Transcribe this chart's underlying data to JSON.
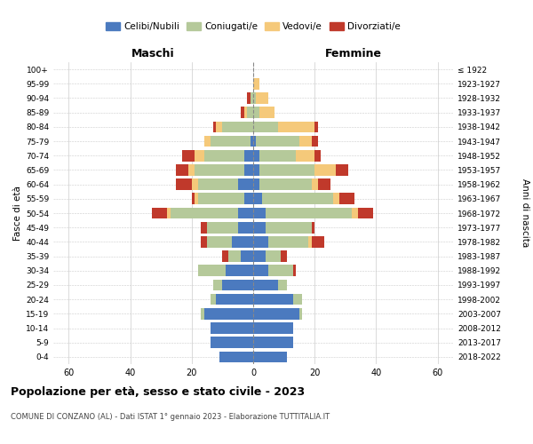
{
  "age_groups": [
    "0-4",
    "5-9",
    "10-14",
    "15-19",
    "20-24",
    "25-29",
    "30-34",
    "35-39",
    "40-44",
    "45-49",
    "50-54",
    "55-59",
    "60-64",
    "65-69",
    "70-74",
    "75-79",
    "80-84",
    "85-89",
    "90-94",
    "95-99",
    "100+"
  ],
  "birth_years": [
    "2018-2022",
    "2013-2017",
    "2008-2012",
    "2003-2007",
    "1998-2002",
    "1993-1997",
    "1988-1992",
    "1983-1987",
    "1978-1982",
    "1973-1977",
    "1968-1972",
    "1963-1967",
    "1958-1962",
    "1953-1957",
    "1948-1952",
    "1943-1947",
    "1938-1942",
    "1933-1937",
    "1928-1932",
    "1923-1927",
    "≤ 1922"
  ],
  "colors": {
    "celibi": "#4b7abf",
    "coniugati": "#b5c99a",
    "vedovi": "#f5c97a",
    "divorziati": "#c0392b"
  },
  "maschi": {
    "celibi": [
      11,
      14,
      14,
      16,
      12,
      10,
      9,
      4,
      7,
      5,
      5,
      3,
      5,
      3,
      3,
      1,
      0,
      0,
      0,
      0,
      0
    ],
    "coniugati": [
      0,
      0,
      0,
      1,
      2,
      3,
      9,
      4,
      8,
      10,
      22,
      15,
      13,
      16,
      13,
      13,
      10,
      2,
      1,
      0,
      0
    ],
    "vedovi": [
      0,
      0,
      0,
      0,
      0,
      0,
      0,
      0,
      0,
      0,
      1,
      1,
      2,
      2,
      3,
      2,
      2,
      1,
      0,
      0,
      0
    ],
    "divorziati": [
      0,
      0,
      0,
      0,
      0,
      0,
      0,
      2,
      2,
      2,
      5,
      1,
      5,
      4,
      4,
      0,
      1,
      1,
      1,
      0,
      0
    ]
  },
  "femmine": {
    "nubili": [
      11,
      13,
      13,
      15,
      13,
      8,
      5,
      4,
      5,
      4,
      4,
      3,
      2,
      2,
      2,
      1,
      0,
      0,
      0,
      0,
      0
    ],
    "coniugate": [
      0,
      0,
      0,
      1,
      3,
      3,
      8,
      5,
      13,
      15,
      28,
      23,
      17,
      18,
      12,
      14,
      8,
      2,
      1,
      0,
      0
    ],
    "vedove": [
      0,
      0,
      0,
      0,
      0,
      0,
      0,
      0,
      1,
      0,
      2,
      2,
      2,
      7,
      6,
      4,
      12,
      5,
      4,
      2,
      0
    ],
    "divorziate": [
      0,
      0,
      0,
      0,
      0,
      0,
      1,
      2,
      4,
      1,
      5,
      5,
      4,
      4,
      2,
      2,
      1,
      0,
      0,
      0,
      0
    ]
  },
  "xlim": 65,
  "title": "Popolazione per età, sesso e stato civile - 2023",
  "subtitle": "COMUNE DI CONZANO (AL) - Dati ISTAT 1° gennaio 2023 - Elaborazione TUTTITALIA.IT",
  "xlabel_left": "Maschi",
  "xlabel_right": "Femmine",
  "ylabel": "Fasce di età",
  "ylabel_right": "Anni di nascita",
  "legend_labels": [
    "Celibi/Nubili",
    "Coniugati/e",
    "Vedovi/e",
    "Divorziati/e"
  ],
  "background_color": "#ffffff",
  "grid_color": "#cccccc"
}
